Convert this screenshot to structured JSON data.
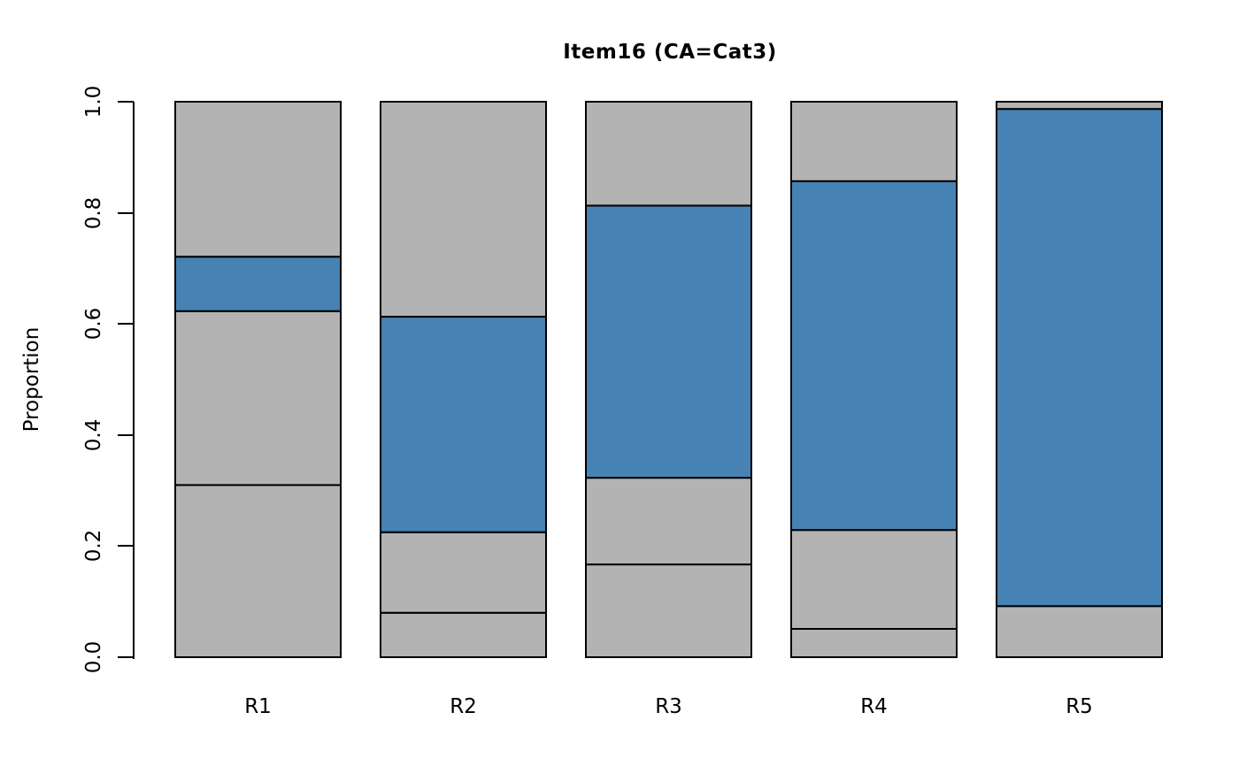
{
  "chart_data": {
    "type": "bar",
    "variant": "stacked-proportion",
    "title": "Item16 (CA=Cat3)",
    "highlighted_category": "Cat3",
    "xlabel": "",
    "ylabel": "Proportion",
    "ylim": [
      0.0,
      1.0
    ],
    "yticks": [
      "0.0",
      "0.2",
      "0.4",
      "0.6",
      "0.8",
      "1.0"
    ],
    "grid": false,
    "legend": null,
    "categories": [
      "R1",
      "R2",
      "R3",
      "R4",
      "R5"
    ],
    "colors": {
      "gray": "#B3B3B3",
      "blue": "#4682B4",
      "border": "#000000"
    },
    "series": [
      {
        "category": "R1",
        "segments": [
          {
            "value": 0.31,
            "color": "gray"
          },
          {
            "value": 0.313,
            "color": "gray"
          },
          {
            "value": 0.098,
            "color": "blue"
          },
          {
            "value": 0.279,
            "color": "gray"
          }
        ]
      },
      {
        "category": "R2",
        "segments": [
          {
            "value": 0.08,
            "color": "gray"
          },
          {
            "value": 0.145,
            "color": "gray"
          },
          {
            "value": 0.388,
            "color": "blue"
          },
          {
            "value": 0.387,
            "color": "gray"
          }
        ]
      },
      {
        "category": "R3",
        "segments": [
          {
            "value": 0.167,
            "color": "gray"
          },
          {
            "value": 0.156,
            "color": "gray"
          },
          {
            "value": 0.49,
            "color": "blue"
          },
          {
            "value": 0.187,
            "color": "gray"
          }
        ]
      },
      {
        "category": "R4",
        "segments": [
          {
            "value": 0.051,
            "color": "gray"
          },
          {
            "value": 0.178,
            "color": "gray"
          },
          {
            "value": 0.628,
            "color": "blue"
          },
          {
            "value": 0.143,
            "color": "gray"
          }
        ]
      },
      {
        "category": "R5",
        "segments": [
          {
            "value": 0.092,
            "color": "gray"
          },
          {
            "value": 0.895,
            "color": "blue"
          },
          {
            "value": 0.013,
            "color": "gray"
          }
        ]
      }
    ]
  }
}
